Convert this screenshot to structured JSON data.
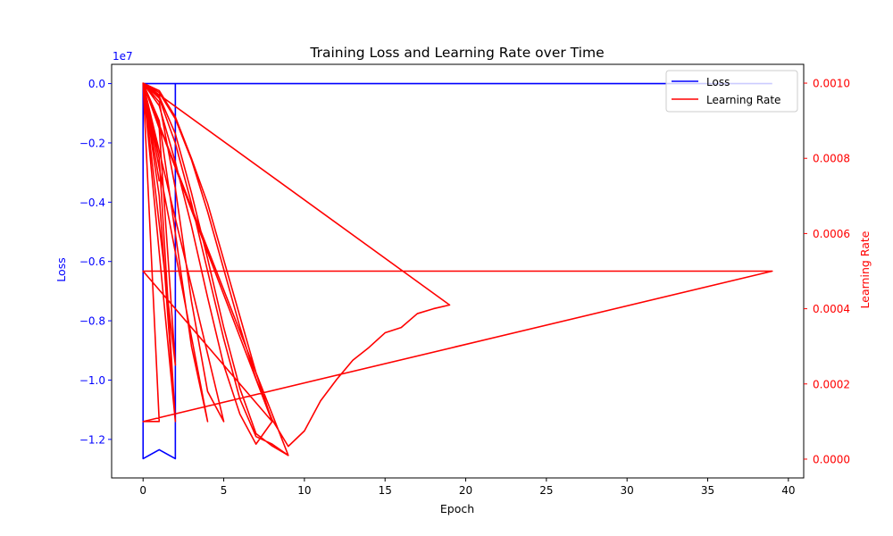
{
  "chart_data": {
    "type": "line",
    "title": "Training Loss and Learning Rate over Time",
    "xlabel": "Epoch",
    "xlim": [
      -1.95,
      40.95
    ],
    "x_ticks": [
      0,
      5,
      10,
      15,
      20,
      25,
      30,
      35,
      40
    ],
    "left_axis": {
      "label": "Loss",
      "color": "#0000ff",
      "ylim": [
        -13300000,
        650000
      ],
      "ticks": [
        0,
        -2000000,
        -4000000,
        -6000000,
        -8000000,
        -10000000,
        -12000000
      ],
      "tick_labels": [
        "0.0",
        "−0.2",
        "−0.4",
        "−0.6",
        "−0.8",
        "−1.0",
        "−1.2"
      ],
      "offset_label": "1e7"
    },
    "right_axis": {
      "label": "Learning Rate",
      "color": "#ff0000",
      "ylim": [
        -5e-05,
        0.00105
      ],
      "ticks": [
        0,
        0.0002,
        0.0004,
        0.0006,
        0.0008,
        0.001
      ],
      "tick_labels": [
        "0.0000",
        "0.0002",
        "0.0004",
        "0.0006",
        "0.0008",
        "0.0010"
      ]
    },
    "legend": {
      "placement": "top-right"
    },
    "series": [
      {
        "name": "Loss",
        "axis": "left",
        "color": "#0000ff",
        "x": [
          0,
          0,
          1,
          2,
          2,
          0,
          8,
          39
        ],
        "y": [
          0,
          -12650000,
          -12350000,
          -12650000,
          0,
          0,
          0,
          0
        ]
      },
      {
        "name": "Learning Rate",
        "axis": "right",
        "color": "#ff0000",
        "x": [
          0,
          1,
          2,
          3,
          4,
          5,
          6,
          7,
          8,
          9,
          10,
          11,
          12,
          13,
          14,
          15,
          16,
          17,
          18,
          19,
          0,
          1,
          2,
          3,
          4,
          5,
          6,
          7,
          8,
          9,
          0,
          1,
          2,
          3,
          4,
          5,
          0,
          1,
          2,
          0,
          1,
          0,
          1,
          2,
          3,
          4,
          5,
          6,
          7,
          8,
          0,
          1,
          2,
          0,
          1,
          0,
          1,
          2,
          3,
          4,
          0,
          1,
          0,
          1,
          2,
          3,
          4,
          5,
          6,
          7,
          8,
          9,
          0,
          1,
          2,
          0,
          1,
          0,
          1,
          2,
          3,
          4,
          5,
          6,
          7,
          8,
          0,
          39,
          0,
          1
        ],
        "y": [
          0.001,
          0.000975,
          0.000905,
          0.000796,
          0.000658,
          0.000505,
          0.000352,
          0.000214,
          0.000105,
          3.4e-05,
          7.5e-05,
          0.000155,
          0.000212,
          0.000263,
          0.000297,
          0.000336,
          0.00035,
          0.000387,
          0.0004,
          0.00041,
          0.001,
          0.000965,
          0.000865,
          0.000708,
          0.000533,
          0.00035,
          0.000188,
          6.8e-05,
          3.5e-05,
          1e-05,
          0.001,
          0.00095,
          0.00072,
          0.00042,
          0.00018,
          0.0001,
          0.001,
          0.00088,
          0.00025,
          0.001,
          0.00074,
          0.001,
          0.00094,
          0.00079,
          0.00062,
          0.00043,
          0.00025,
          0.00012,
          4e-05,
          0.0001,
          0.001,
          0.0008,
          0.0001,
          0.001,
          0.0001,
          0.001,
          0.0009,
          0.0006,
          0.0003,
          0.0001,
          0.001,
          0.0001,
          0.001,
          0.00096,
          0.00084,
          0.00068,
          0.0005,
          0.00032,
          0.00016,
          6e-05,
          4e-05,
          1e-05,
          0.001,
          0.0007,
          0.0001,
          0.001,
          0.0001,
          0.001,
          0.00098,
          0.00091,
          0.0008,
          0.00068,
          0.00053,
          0.00038,
          0.00023,
          0.0001,
          0.0005,
          0.0005,
          0.0001,
          0.0001
        ]
      }
    ]
  }
}
